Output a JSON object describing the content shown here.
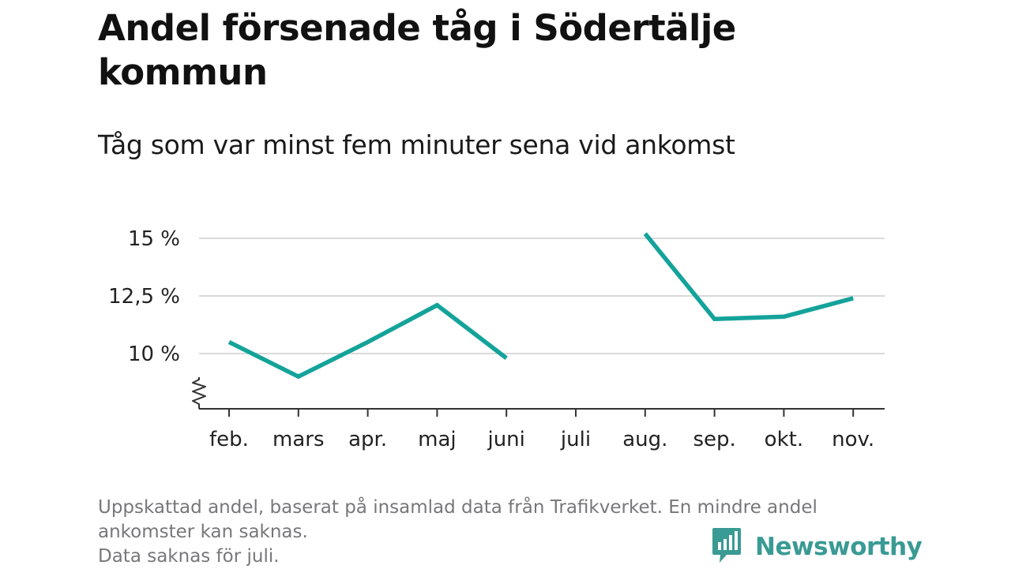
{
  "title": "Andel försenade tåg i Södertälje kommun",
  "subtitle": "Tåg som var minst fem minuter sena vid ankomst",
  "chart_data": {
    "type": "line",
    "title": "Andel försenade tåg i Södertälje kommun",
    "subtitle": "Tåg som var minst fem minuter sena vid ankomst",
    "categories": [
      "feb.",
      "mars",
      "apr.",
      "maj",
      "juni",
      "juli",
      "aug.",
      "sep.",
      "okt.",
      "nov."
    ],
    "series": [
      {
        "values": [
          10.5,
          9.0,
          10.5,
          12.1,
          9.8,
          null,
          15.2,
          11.5,
          11.6,
          12.4
        ],
        "color": "#14a39a"
      }
    ],
    "yticks": [
      10,
      12.5,
      15
    ],
    "ytick_labels": [
      "10 %",
      "12,5 %",
      "15 %"
    ],
    "ylim": [
      7.7,
      15.4
    ],
    "y_axis_break": true,
    "grid": true,
    "xlabel": "",
    "ylabel": ""
  },
  "footnote": {
    "lines": [
      "Uppskattad andel, baserat på insamlad data från Trafikverket. En mindre andel",
      "ankomster kan saknas.",
      "Data saknas för juli."
    ]
  },
  "logo": {
    "text": "Newsworthy",
    "color": "#3a9a94"
  }
}
